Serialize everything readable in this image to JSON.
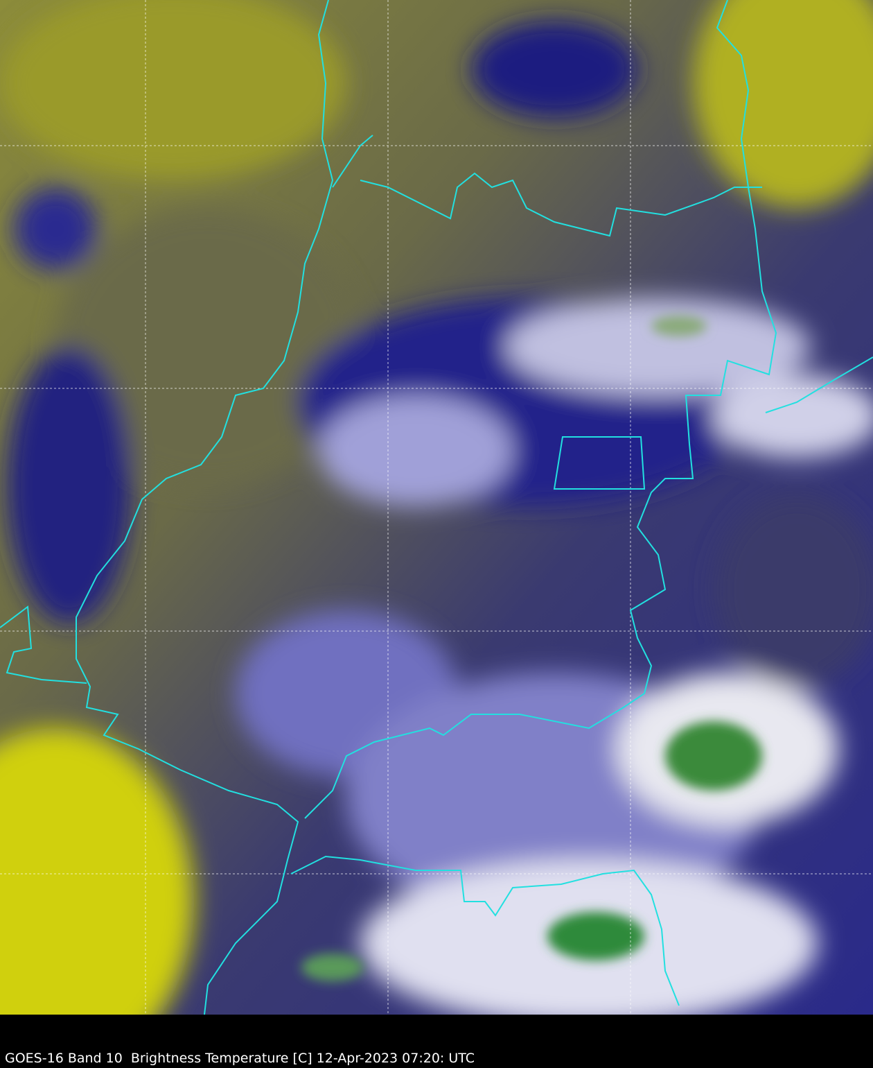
{
  "caption": "GOES-16 Band 10  Brightness Temperature [C] 12-Apr-2023 07:20: UTC",
  "colors": {
    "background": "#000000",
    "warm_surface": "#9a9a2a",
    "mid_cloud": "#5a5a50",
    "cold_cloud": "#1a1a8a",
    "very_cold": "#ffffff",
    "coldest": "#3a8a3a",
    "boundary": "#22e0e0",
    "graticule": "#ffffff"
  }
}
